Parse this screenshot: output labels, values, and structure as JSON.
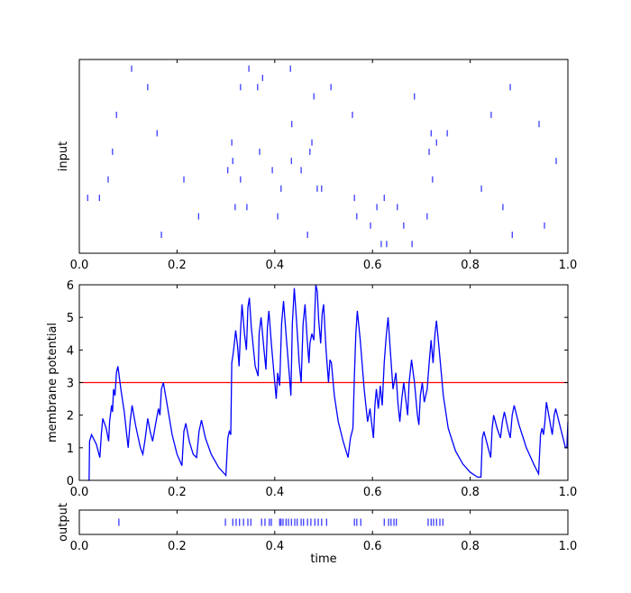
{
  "chart_data": [
    {
      "type": "raster",
      "ylabel": "input",
      "color": "#0000ff",
      "x": [
        0.107,
        0.347,
        0.432,
        0.375,
        0.14,
        0.33,
        0.365,
        0.515,
        0.882,
        0.48,
        0.686,
        0.076,
        0.559,
        0.843,
        0.435,
        0.941,
        0.159,
        0.72,
        0.753,
        0.312,
        0.476,
        0.731,
        0.068,
        0.369,
        0.472,
        0.716,
        0.314,
        0.434,
        0.976,
        0.304,
        0.395,
        0.454,
        0.059,
        0.214,
        0.33,
        0.723,
        0.413,
        0.487,
        0.496,
        0.823,
        0.017,
        0.041,
        0.563,
        0.624,
        0.319,
        0.343,
        0.609,
        0.651,
        0.867,
        0.244,
        0.406,
        0.568,
        0.712,
        0.596,
        0.664,
        0.952,
        0.168,
        0.467,
        0.886,
        0.618,
        0.629,
        0.681
      ],
      "y": [
        19,
        19,
        19,
        18,
        17,
        17,
        17,
        17,
        17,
        16,
        16,
        14,
        14,
        14,
        13,
        13,
        12,
        12,
        12,
        11,
        11,
        11,
        10,
        10,
        10,
        10,
        9,
        9,
        9,
        8,
        8,
        8,
        7,
        7,
        7,
        7,
        6,
        6,
        6,
        6,
        5,
        5,
        5,
        5,
        4,
        4,
        4,
        4,
        4,
        3,
        3,
        3,
        3,
        2,
        2,
        2,
        1,
        1,
        1,
        0,
        0,
        0
      ],
      "xlim": [
        0,
        1
      ],
      "ylim": [
        -1,
        20
      ],
      "xticks": [
        {
          "value": 0,
          "label": "0.0"
        },
        {
          "value": 0.2,
          "label": "0.2"
        },
        {
          "value": 0.4,
          "label": "0.4"
        },
        {
          "value": 0.6,
          "label": "0.6"
        },
        {
          "value": 0.8,
          "label": "0.8"
        },
        {
          "value": 1,
          "label": "1.0"
        }
      ]
    },
    {
      "type": "line",
      "ylabel": "membrane potential",
      "color": "#0000ff",
      "threshold": 3,
      "threshold_color": "#ff0000",
      "x": [
        0.018,
        0.02,
        0.021,
        0.025,
        0.035,
        0.042,
        0.045,
        0.048,
        0.055,
        0.06,
        0.062,
        0.066,
        0.068,
        0.07,
        0.073,
        0.076,
        0.079,
        0.085,
        0.092,
        0.097,
        0.1,
        0.104,
        0.108,
        0.115,
        0.125,
        0.13,
        0.135,
        0.14,
        0.145,
        0.15,
        0.157,
        0.162,
        0.165,
        0.168,
        0.172,
        0.18,
        0.19,
        0.2,
        0.21,
        0.214,
        0.218,
        0.225,
        0.233,
        0.24,
        0.245,
        0.25,
        0.258,
        0.27,
        0.285,
        0.3,
        0.304,
        0.307,
        0.31,
        0.312,
        0.315,
        0.318,
        0.32,
        0.324,
        0.327,
        0.33,
        0.333,
        0.338,
        0.342,
        0.345,
        0.348,
        0.352,
        0.36,
        0.366,
        0.368,
        0.372,
        0.378,
        0.382,
        0.385,
        0.388,
        0.393,
        0.4,
        0.403,
        0.406,
        0.41,
        0.414,
        0.418,
        0.423,
        0.43,
        0.433,
        0.436,
        0.44,
        0.445,
        0.45,
        0.454,
        0.458,
        0.462,
        0.466,
        0.47,
        0.472,
        0.476,
        0.48,
        0.484,
        0.487,
        0.49,
        0.494,
        0.497,
        0.5,
        0.505,
        0.51,
        0.513,
        0.516,
        0.522,
        0.53,
        0.54,
        0.55,
        0.555,
        0.56,
        0.563,
        0.566,
        0.569,
        0.575,
        0.583,
        0.59,
        0.595,
        0.598,
        0.602,
        0.605,
        0.608,
        0.612,
        0.616,
        0.62,
        0.624,
        0.628,
        0.632,
        0.636,
        0.642,
        0.648,
        0.652,
        0.656,
        0.66,
        0.664,
        0.668,
        0.672,
        0.675,
        0.68,
        0.686,
        0.692,
        0.695,
        0.698,
        0.702,
        0.706,
        0.712,
        0.716,
        0.72,
        0.724,
        0.728,
        0.731,
        0.736,
        0.745,
        0.755,
        0.77,
        0.785,
        0.8,
        0.815,
        0.822,
        0.825,
        0.828,
        0.835,
        0.842,
        0.845,
        0.848,
        0.855,
        0.862,
        0.866,
        0.87,
        0.877,
        0.882,
        0.886,
        0.89,
        0.9,
        0.915,
        0.93,
        0.94,
        0.944,
        0.947,
        0.95,
        0.953,
        0.956,
        0.962,
        0.968,
        0.972,
        0.975,
        0.985,
        0.995,
        0.998,
        1.0
      ],
      "values": [
        0,
        0,
        1.2,
        1.4,
        1.1,
        0.7,
        1.4,
        1.9,
        1.6,
        1.2,
        1.8,
        2.3,
        2.1,
        2.8,
        2.6,
        3.3,
        3.5,
        2.8,
        2.1,
        1.4,
        1.0,
        1.8,
        2.3,
        1.7,
        1.0,
        0.8,
        1.3,
        1.9,
        1.5,
        1.2,
        1.8,
        2.2,
        2.0,
        2.8,
        3.0,
        2.3,
        1.4,
        0.8,
        0.45,
        1.5,
        1.75,
        1.2,
        0.8,
        0.7,
        1.5,
        1.85,
        1.3,
        0.8,
        0.4,
        0.15,
        1.3,
        1.5,
        1.4,
        3.6,
        3.9,
        4.3,
        4.6,
        4.1,
        3.5,
        4.6,
        5.4,
        4.5,
        4.0,
        5.3,
        5.6,
        4.7,
        3.5,
        3.2,
        4.5,
        5.0,
        4.0,
        3.4,
        4.7,
        5.2,
        4.2,
        3.0,
        2.5,
        3.3,
        2.9,
        4.8,
        5.5,
        4.5,
        3.2,
        2.6,
        4.8,
        5.9,
        4.8,
        3.6,
        3.0,
        4.8,
        5.4,
        4.4,
        3.6,
        4.2,
        4.5,
        4.3,
        6.0,
        5.8,
        4.9,
        4.2,
        5.1,
        5.4,
        4.0,
        3.0,
        3.7,
        3.6,
        2.6,
        1.8,
        1.2,
        0.7,
        1.3,
        1.6,
        3.2,
        4.5,
        5.2,
        4.3,
        2.8,
        1.8,
        2.2,
        1.8,
        1.3,
        2.3,
        2.8,
        2.2,
        2.9,
        2.3,
        3.6,
        4.4,
        5.0,
        4.1,
        2.8,
        3.3,
        2.4,
        1.8,
        2.5,
        3.0,
        2.5,
        2.0,
        3.0,
        3.7,
        3.0,
        2.0,
        1.7,
        2.6,
        3.0,
        2.4,
        2.8,
        3.6,
        4.3,
        3.6,
        4.5,
        4.9,
        4.1,
        2.6,
        1.6,
        0.9,
        0.5,
        0.25,
        0.1,
        0.1,
        1.3,
        1.5,
        1.1,
        0.7,
        1.6,
        2.0,
        1.6,
        1.3,
        1.8,
        2.1,
        1.6,
        1.3,
        2.0,
        2.3,
        1.7,
        1.0,
        0.5,
        0.2,
        1.4,
        1.6,
        1.4,
        1.8,
        2.4,
        1.9,
        1.4,
        2.0,
        2.2,
        1.6,
        1.0,
        1.0,
        1.8
      ],
      "xlim": [
        0,
        1
      ],
      "ylim": [
        0,
        6
      ],
      "yticks": [
        0,
        1,
        2,
        3,
        4,
        5,
        6
      ],
      "xticks": [
        {
          "value": 0,
          "label": "0.0"
        },
        {
          "value": 0.2,
          "label": "0.2"
        },
        {
          "value": 0.4,
          "label": "0.4"
        },
        {
          "value": 0.6,
          "label": "0.6"
        },
        {
          "value": 0.8,
          "label": "0.8"
        },
        {
          "value": 1,
          "label": "1.0"
        }
      ]
    },
    {
      "type": "event",
      "ylabel": "output",
      "xlabel": "time",
      "color": "#0000ff",
      "x": [
        0.081,
        0.299,
        0.314,
        0.321,
        0.328,
        0.336,
        0.345,
        0.351,
        0.373,
        0.38,
        0.389,
        0.393,
        0.41,
        0.413,
        0.417,
        0.423,
        0.428,
        0.434,
        0.441,
        0.446,
        0.454,
        0.459,
        0.467,
        0.474,
        0.482,
        0.489,
        0.496,
        0.506,
        0.563,
        0.568,
        0.576,
        0.624,
        0.633,
        0.638,
        0.644,
        0.649,
        0.714,
        0.72,
        0.725,
        0.731,
        0.738,
        0.744
      ],
      "xlim": [
        0,
        1
      ],
      "xticks": [
        {
          "value": 0,
          "label": "0.0"
        },
        {
          "value": 0.2,
          "label": "0.2"
        },
        {
          "value": 0.4,
          "label": "0.4"
        },
        {
          "value": 0.6,
          "label": "0.6"
        },
        {
          "value": 0.8,
          "label": "0.8"
        },
        {
          "value": 1,
          "label": "1.0"
        }
      ]
    }
  ]
}
